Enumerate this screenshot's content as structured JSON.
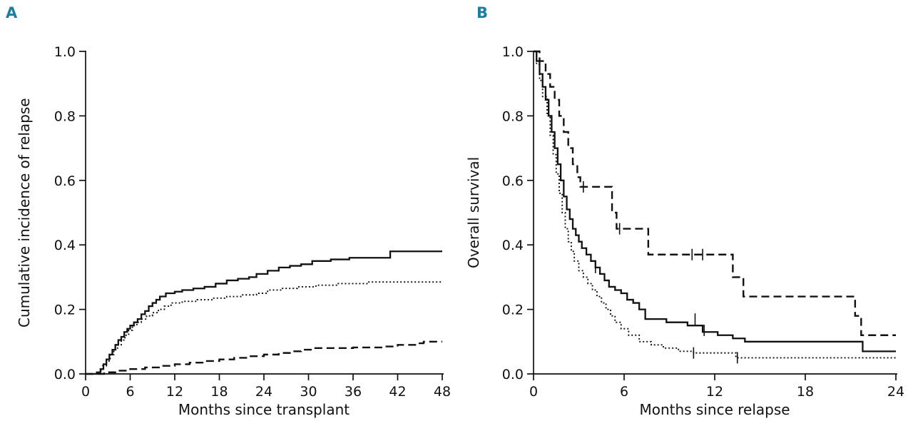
{
  "figure": {
    "background": "#ffffff",
    "panel_label_color": "#1b7f9c",
    "curve_color": "#111111"
  },
  "chart_data": [
    {
      "type": "line",
      "panel_label": "A",
      "xlabel": "Months since transplant",
      "ylabel": "Cumulative incidence of relapse",
      "xlim": [
        0,
        48
      ],
      "ylim": [
        0,
        1.0
      ],
      "xticks": [
        "0",
        "6",
        "12",
        "18",
        "24",
        "30",
        "36",
        "42",
        "48"
      ],
      "yticks": [
        "0.0",
        "0.2",
        "0.4",
        "0.6",
        "0.8",
        "1.0"
      ],
      "grid": false,
      "legend": "none",
      "step": "after",
      "series": [
        {
          "name": "solid-curve",
          "line_style": "solid",
          "x": [
            0,
            1.5,
            2.0,
            2.4,
            2.8,
            3.2,
            3.6,
            4.0,
            4.4,
            4.8,
            5.2,
            5.6,
            6.0,
            6.5,
            7.0,
            7.5,
            8.0,
            8.5,
            9.0,
            9.5,
            10.0,
            10.8,
            12.0,
            13.0,
            14.5,
            16.0,
            17.5,
            19.0,
            20.5,
            22.0,
            23.0,
            24.5,
            26.0,
            27.5,
            29.0,
            30.5,
            33.0,
            35.5,
            41.0,
            48
          ],
          "y": [
            0,
            0.005,
            0.015,
            0.03,
            0.045,
            0.06,
            0.075,
            0.09,
            0.105,
            0.115,
            0.13,
            0.14,
            0.15,
            0.16,
            0.17,
            0.185,
            0.195,
            0.21,
            0.22,
            0.23,
            0.24,
            0.25,
            0.255,
            0.26,
            0.265,
            0.27,
            0.28,
            0.29,
            0.295,
            0.3,
            0.31,
            0.32,
            0.33,
            0.335,
            0.34,
            0.35,
            0.355,
            0.36,
            0.38,
            0.38
          ]
        },
        {
          "name": "dotted-curve",
          "line_style": "dotted",
          "x": [
            0,
            1.8,
            2.3,
            2.8,
            3.3,
            3.8,
            4.3,
            4.8,
            5.3,
            5.8,
            6.3,
            6.9,
            7.5,
            8.2,
            9.0,
            9.8,
            10.6,
            11.5,
            13.0,
            15.0,
            17.0,
            19.0,
            21.0,
            23.0,
            24.5,
            26.5,
            28.5,
            31.0,
            34.0,
            38.0,
            48
          ],
          "y": [
            0,
            0.01,
            0.025,
            0.04,
            0.06,
            0.075,
            0.09,
            0.105,
            0.12,
            0.135,
            0.15,
            0.16,
            0.17,
            0.18,
            0.19,
            0.2,
            0.21,
            0.22,
            0.225,
            0.23,
            0.235,
            0.24,
            0.245,
            0.25,
            0.26,
            0.265,
            0.27,
            0.275,
            0.28,
            0.285,
            0.285
          ]
        },
        {
          "name": "dashed-curve",
          "line_style": "dashed",
          "x": [
            0,
            2.5,
            4.0,
            6.0,
            8.0,
            10.0,
            12.0,
            14.0,
            16.0,
            18.0,
            20.0,
            22.0,
            24.0,
            26.0,
            27.5,
            29.0,
            30.5,
            36.0,
            40.0,
            42.0,
            44.5,
            45.5,
            48
          ],
          "y": [
            0,
            0.005,
            0.01,
            0.015,
            0.02,
            0.025,
            0.03,
            0.035,
            0.04,
            0.045,
            0.05,
            0.055,
            0.06,
            0.065,
            0.07,
            0.075,
            0.08,
            0.082,
            0.085,
            0.09,
            0.095,
            0.1,
            0.1
          ]
        }
      ]
    },
    {
      "type": "line",
      "panel_label": "B",
      "xlabel": "Months since relapse",
      "ylabel": "Overall survival",
      "xlim": [
        0,
        24
      ],
      "ylim": [
        0,
        1.0
      ],
      "xticks": [
        "0",
        "6",
        "12",
        "18",
        "24"
      ],
      "yticks": [
        "0.0",
        "0.2",
        "0.4",
        "0.6",
        "0.8",
        "1.0"
      ],
      "grid": false,
      "legend": "none",
      "step": "after",
      "series": [
        {
          "name": "dashed-curve",
          "line_style": "dashed",
          "x": [
            0,
            0.4,
            0.8,
            1.1,
            1.4,
            1.7,
            2.0,
            2.3,
            2.6,
            2.9,
            3.1,
            5.2,
            5.5,
            7.6,
            13.2,
            13.9,
            21.3,
            21.7,
            24
          ],
          "y": [
            1.0,
            0.97,
            0.93,
            0.89,
            0.85,
            0.8,
            0.75,
            0.7,
            0.65,
            0.61,
            0.58,
            0.5,
            0.45,
            0.37,
            0.3,
            0.24,
            0.18,
            0.12,
            0.12
          ],
          "censors": [
            [
              3.3,
              0.58
            ],
            [
              5.7,
              0.45
            ],
            [
              10.5,
              0.37
            ],
            [
              11.2,
              0.37
            ]
          ]
        },
        {
          "name": "solid-curve",
          "line_style": "solid",
          "x": [
            0,
            0.2,
            0.4,
            0.6,
            0.8,
            1.0,
            1.2,
            1.4,
            1.6,
            1.8,
            2.0,
            2.2,
            2.4,
            2.6,
            2.8,
            3.0,
            3.2,
            3.5,
            3.8,
            4.1,
            4.4,
            4.7,
            5.0,
            5.4,
            5.8,
            6.2,
            6.6,
            7.0,
            7.4,
            8.8,
            10.2,
            11.2,
            12.2,
            13.2,
            14.0,
            21.8,
            24
          ],
          "y": [
            1.0,
            0.97,
            0.93,
            0.89,
            0.85,
            0.8,
            0.75,
            0.7,
            0.65,
            0.6,
            0.55,
            0.51,
            0.48,
            0.45,
            0.43,
            0.41,
            0.39,
            0.37,
            0.35,
            0.33,
            0.31,
            0.29,
            0.27,
            0.26,
            0.25,
            0.23,
            0.22,
            0.2,
            0.17,
            0.16,
            0.15,
            0.13,
            0.12,
            0.11,
            0.1,
            0.07,
            0.07
          ],
          "censors": [
            [
              4.1,
              0.33
            ],
            [
              10.7,
              0.17
            ],
            [
              11.3,
              0.135
            ]
          ]
        },
        {
          "name": "dotted-curve",
          "line_style": "dotted",
          "x": [
            0,
            0.2,
            0.4,
            0.6,
            0.9,
            1.1,
            1.3,
            1.5,
            1.7,
            1.9,
            2.1,
            2.3,
            2.5,
            2.7,
            3.0,
            3.3,
            3.6,
            3.9,
            4.2,
            4.5,
            4.8,
            5.1,
            5.4,
            5.8,
            6.3,
            7.0,
            7.8,
            8.6,
            9.6,
            10.6,
            13.4,
            24
          ],
          "y": [
            1.0,
            0.96,
            0.91,
            0.86,
            0.8,
            0.74,
            0.68,
            0.62,
            0.56,
            0.5,
            0.45,
            0.41,
            0.38,
            0.35,
            0.32,
            0.3,
            0.28,
            0.26,
            0.24,
            0.22,
            0.2,
            0.18,
            0.16,
            0.14,
            0.12,
            0.1,
            0.09,
            0.08,
            0.07,
            0.065,
            0.05,
            0.05
          ],
          "censors": [
            [
              10.6,
              0.065
            ],
            [
              13.5,
              0.05
            ]
          ]
        }
      ]
    }
  ]
}
